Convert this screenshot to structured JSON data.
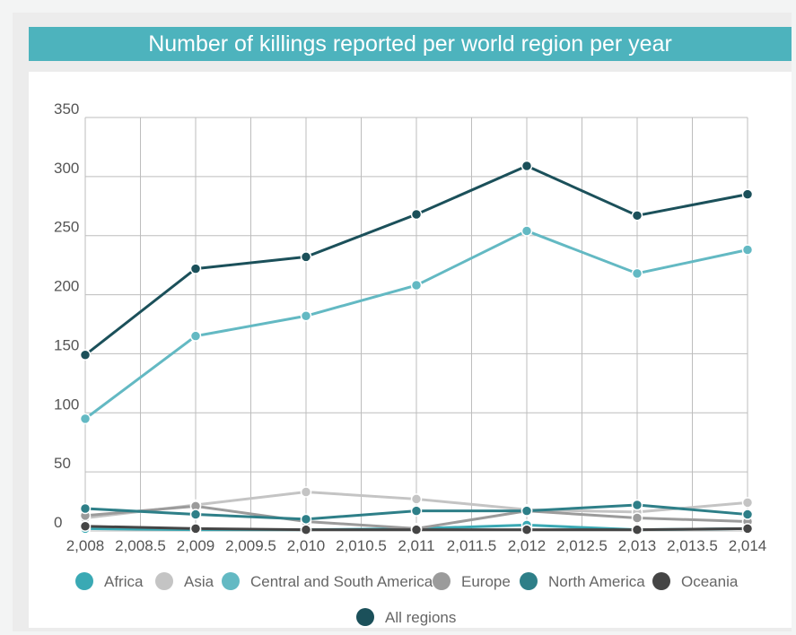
{
  "chart_data": {
    "type": "line",
    "title": "Number of killings reported per world region per year",
    "xlabel": "",
    "ylabel": "",
    "x": [
      2008,
      2009,
      2010,
      2011,
      2012,
      2013,
      2014
    ],
    "xlim": [
      2008,
      2014
    ],
    "ylim": [
      0,
      350
    ],
    "x_tick_labels": [
      "2,008",
      "2,008.5",
      "2,009",
      "2,009.5",
      "2,010",
      "2,010.5",
      "2,011",
      "2,011.5",
      "2,012",
      "2,012.5",
      "2,013",
      "2,013.5",
      "2,014"
    ],
    "y_tick_labels": [
      "0",
      "50",
      "100",
      "150",
      "200",
      "250",
      "300",
      "350"
    ],
    "grid": true,
    "legend_position": "bottom",
    "series": [
      {
        "name": "Africa",
        "color": "#3aa9b4",
        "values": [
          2,
          1,
          1,
          2,
          5,
          1,
          2
        ]
      },
      {
        "name": "Asia",
        "color": "#c4c4c4",
        "values": [
          11,
          22,
          33,
          27,
          18,
          16,
          24
        ]
      },
      {
        "name": "Central and South America",
        "color": "#63b9c3",
        "values": [
          95,
          165,
          182,
          208,
          254,
          218,
          238
        ]
      },
      {
        "name": "Europe",
        "color": "#9b9b9b",
        "values": [
          13,
          21,
          8,
          2,
          17,
          11,
          8
        ]
      },
      {
        "name": "North America",
        "color": "#2e7f88",
        "values": [
          19,
          14,
          10,
          17,
          17,
          22,
          14
        ]
      },
      {
        "name": "Oceania",
        "color": "#454545",
        "values": [
          4,
          2,
          1,
          1,
          1,
          1,
          2
        ]
      },
      {
        "name": "All regions",
        "color": "#1b505a",
        "values": [
          149,
          222,
          232,
          268,
          309,
          267,
          285
        ]
      }
    ]
  }
}
